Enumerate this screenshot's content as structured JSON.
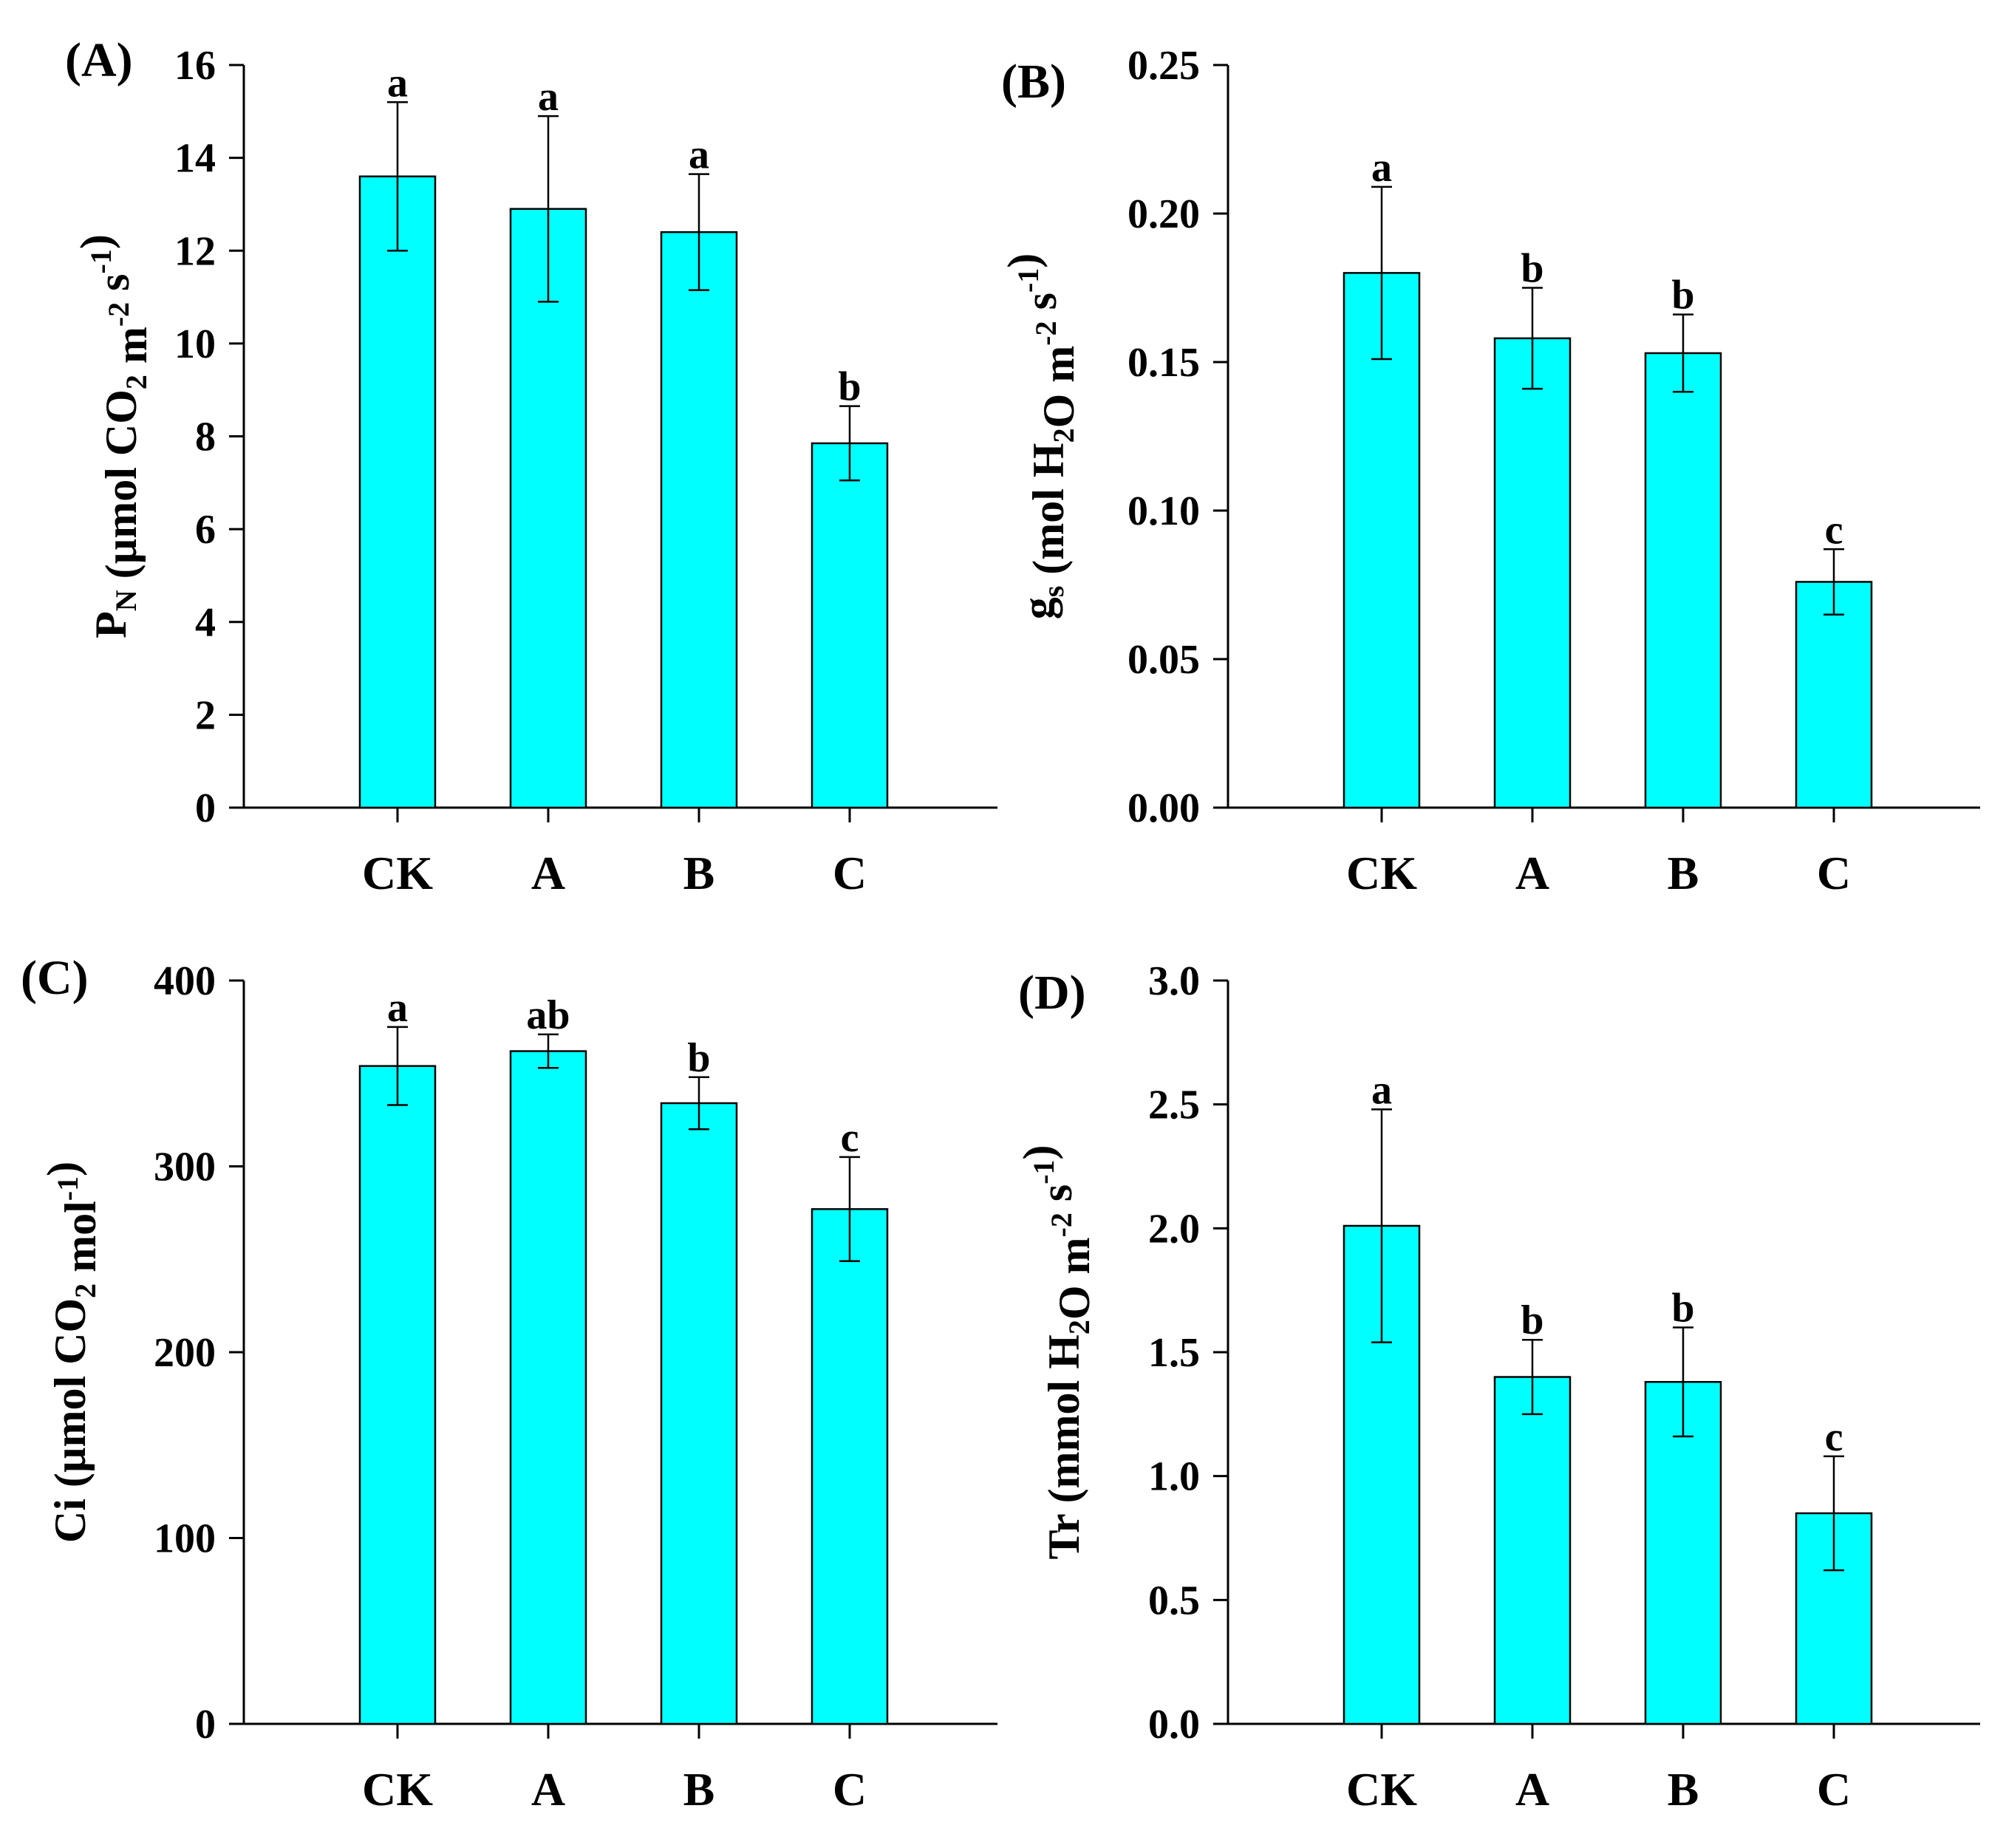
{
  "figure": {
    "background": "#ffffff",
    "bar_color": "#00ffff",
    "stroke_color": "#000000"
  },
  "chart_data": [
    {
      "type": "bar",
      "panel_label": "(A)",
      "ylabel": "PN (µmol CO2 m-2 s-1)",
      "ylabel_parts": [
        {
          "text": "P",
          "style": "normal"
        },
        {
          "text": "N",
          "style": "sub"
        },
        {
          "text": " (µmol CO",
          "style": "normal"
        },
        {
          "text": "2",
          "style": "sub"
        },
        {
          "text": " m",
          "style": "normal"
        },
        {
          "text": "-2",
          "style": "sup"
        },
        {
          "text": " s",
          "style": "normal"
        },
        {
          "text": "-1",
          "style": "sup"
        },
        {
          "text": ")",
          "style": "normal"
        }
      ],
      "categories": [
        "CK",
        "A",
        "B",
        "C"
      ],
      "values": [
        13.6,
        12.9,
        12.4,
        7.85
      ],
      "errors": [
        1.6,
        2.0,
        1.25,
        0.8
      ],
      "letters": [
        "a",
        "a",
        "a",
        "b"
      ],
      "ylim": [
        0,
        16
      ],
      "yticks": [
        "0",
        "2",
        "4",
        "6",
        "8",
        "10",
        "12",
        "14",
        "16"
      ],
      "ytick_values": [
        0,
        2,
        4,
        6,
        8,
        10,
        12,
        14,
        16
      ]
    },
    {
      "type": "bar",
      "panel_label": "(B)",
      "ylabel": "gs (mol H2O m-2 s-1)",
      "ylabel_parts": [
        {
          "text": "g",
          "style": "normal"
        },
        {
          "text": "s",
          "style": "sub"
        },
        {
          "text": " (mol H",
          "style": "normal"
        },
        {
          "text": "2",
          "style": "sub"
        },
        {
          "text": "O m",
          "style": "normal"
        },
        {
          "text": "-2",
          "style": "sup"
        },
        {
          "text": " s",
          "style": "normal"
        },
        {
          "text": "-1",
          "style": "sup"
        },
        {
          "text": ")",
          "style": "normal"
        }
      ],
      "categories": [
        "CK",
        "A",
        "B",
        "C"
      ],
      "values": [
        0.18,
        0.158,
        0.153,
        0.076
      ],
      "errors": [
        0.029,
        0.017,
        0.013,
        0.011
      ],
      "letters": [
        "a",
        "b",
        "b",
        "c"
      ],
      "ylim": [
        0,
        0.25
      ],
      "yticks": [
        "0.00",
        "0.05",
        "0.10",
        "0.15",
        "0.20",
        "0.25"
      ],
      "ytick_values": [
        0,
        0.05,
        0.1,
        0.15,
        0.2,
        0.25
      ]
    },
    {
      "type": "bar",
      "panel_label": "(C)",
      "ylabel": "Ci (µmol CO2 mol-1)",
      "ylabel_parts": [
        {
          "text": "Ci (µmol CO",
          "style": "normal"
        },
        {
          "text": "2",
          "style": "sub"
        },
        {
          "text": " mol",
          "style": "normal"
        },
        {
          "text": "-1",
          "style": "sup"
        },
        {
          "text": ")",
          "style": "normal"
        }
      ],
      "categories": [
        "CK",
        "A",
        "B",
        "C"
      ],
      "values": [
        354,
        362,
        334,
        277
      ],
      "errors": [
        21,
        9,
        14,
        28
      ],
      "letters": [
        "a",
        "ab",
        "b",
        "c"
      ],
      "ylim": [
        0,
        400
      ],
      "yticks": [
        "0",
        "100",
        "200",
        "300",
        "400"
      ],
      "ytick_values": [
        0,
        100,
        200,
        300,
        400
      ]
    },
    {
      "type": "bar",
      "panel_label": "(D)",
      "ylabel": "Tr (mmol H2O m-2 s-1)",
      "ylabel_parts": [
        {
          "text": "Tr (mmol H",
          "style": "normal"
        },
        {
          "text": "2",
          "style": "sub"
        },
        {
          "text": "O m",
          "style": "normal"
        },
        {
          "text": "-2",
          "style": "sup"
        },
        {
          "text": " s",
          "style": "normal"
        },
        {
          "text": "-1",
          "style": "sup"
        },
        {
          "text": ")",
          "style": "normal"
        }
      ],
      "categories": [
        "CK",
        "A",
        "B",
        "C"
      ],
      "values": [
        2.01,
        1.4,
        1.38,
        0.85
      ],
      "errors": [
        0.47,
        0.15,
        0.22,
        0.23
      ],
      "letters": [
        "a",
        "b",
        "b",
        "c"
      ],
      "ylim": [
        0,
        3.0
      ],
      "yticks": [
        "0.0",
        "0.5",
        "1.0",
        "1.5",
        "2.0",
        "2.5",
        "3.0"
      ],
      "ytick_values": [
        0,
        0.5,
        1.0,
        1.5,
        2.0,
        2.5,
        3.0
      ]
    }
  ]
}
